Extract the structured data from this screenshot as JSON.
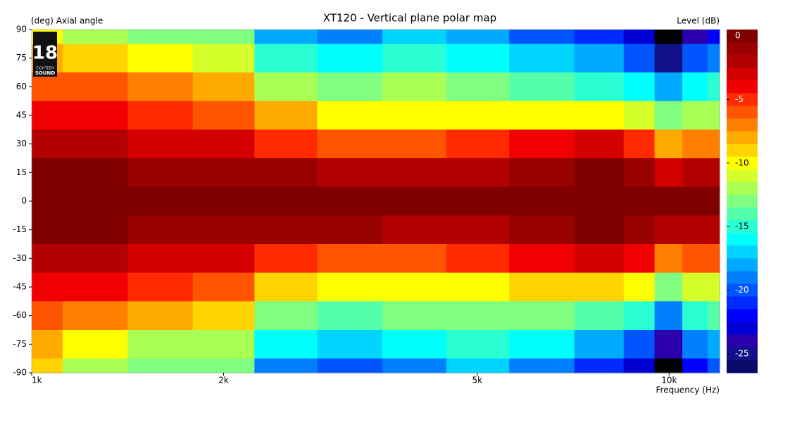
{
  "chart_data": {
    "type": "contour",
    "title": "XT120 - Vertical plane polar map",
    "ylabel": "(deg)  Axial angle",
    "xlabel": "Frequency  (Hz)",
    "zlabel": "Level  (dB)",
    "logo": {
      "number": "18",
      "line1": "EIGHTEEN",
      "line2": "SOUND"
    },
    "x": [
      1000,
      1250,
      1600,
      2000,
      2500,
      3150,
      4000,
      5000,
      6300,
      8000,
      9000,
      10000,
      11000,
      12000
    ],
    "y": [
      90,
      75,
      60,
      45,
      30,
      15,
      0,
      -15,
      -30,
      -45,
      -60,
      -75,
      -90
    ],
    "z": [
      [
        -10,
        -12,
        -13,
        -13,
        -18,
        -19,
        -17,
        -18,
        -20,
        -21,
        -23,
        -27,
        -24,
        -22
      ],
      [
        -8,
        -9,
        -10,
        -11,
        -15,
        -16,
        -15,
        -16,
        -17,
        -18,
        -20,
        -25,
        -20,
        -19
      ],
      [
        -6,
        -6,
        -7,
        -8,
        -12,
        -13,
        -12,
        -13,
        -14,
        -15,
        -16,
        -18,
        -16,
        -15
      ],
      [
        -4,
        -4,
        -5,
        -6,
        -8,
        -10,
        -10,
        -10,
        -10,
        -10,
        -11,
        -13,
        -12,
        -12
      ],
      [
        -2,
        -2,
        -3,
        -3,
        -5,
        -6,
        -6,
        -5,
        -4,
        -3,
        -5,
        -8,
        -7,
        -7
      ],
      [
        0,
        0,
        -1,
        -1,
        -1,
        -2,
        -2,
        -2,
        -1,
        0,
        -1,
        -3,
        -2,
        -2
      ],
      [
        0,
        0,
        0,
        0,
        0,
        0,
        0,
        0,
        0,
        0,
        0,
        0,
        0,
        0
      ],
      [
        0,
        0,
        -1,
        -1,
        -1,
        -1,
        -2,
        -2,
        -1,
        0,
        -1,
        -2,
        -2,
        -2
      ],
      [
        -2,
        -2,
        -3,
        -3,
        -5,
        -6,
        -6,
        -5,
        -4,
        -3,
        -4,
        -7,
        -6,
        -6
      ],
      [
        -4,
        -4,
        -5,
        -6,
        -9,
        -10,
        -10,
        -10,
        -9,
        -9,
        -10,
        -13,
        -11,
        -11
      ],
      [
        -6,
        -7,
        -8,
        -9,
        -13,
        -14,
        -13,
        -13,
        -13,
        -14,
        -15,
        -19,
        -15,
        -14
      ],
      [
        -8,
        -10,
        -12,
        -12,
        -16,
        -17,
        -16,
        -15,
        -16,
        -18,
        -20,
        -24,
        -19,
        -18
      ],
      [
        -9,
        -12,
        -13,
        -13,
        -19,
        -20,
        -19,
        -17,
        -19,
        -21,
        -23,
        -27,
        -22,
        -20
      ]
    ],
    "xscale": "log",
    "xlim": [
      1000,
      12000
    ],
    "xticks": [
      {
        "value": 1000,
        "label": "1k"
      },
      {
        "value": 2000,
        "label": "2k"
      },
      {
        "value": 5000,
        "label": "5k"
      },
      {
        "value": 10000,
        "label": "10k"
      }
    ],
    "ylim": [
      -90,
      90
    ],
    "yticks": [
      90,
      75,
      60,
      45,
      30,
      15,
      0,
      -15,
      -30,
      -45,
      -60,
      -75,
      -90
    ],
    "zlim": [
      -26.5,
      0.5
    ],
    "zticks": [
      0,
      -5,
      -10,
      -15,
      -20,
      -25
    ],
    "colorscale": [
      "#800000",
      "#990000",
      "#b30000",
      "#d40000",
      "#f00000",
      "#ff2a00",
      "#ff5500",
      "#ff8000",
      "#ffaa00",
      "#ffd400",
      "#ffff00",
      "#d4ff2a",
      "#aaff55",
      "#80ff80",
      "#55ffaa",
      "#2affd4",
      "#00ffff",
      "#00d4ff",
      "#00aaff",
      "#0080ff",
      "#0055ff",
      "#002aff",
      "#0000ff",
      "#0000d4",
      "#2a00aa",
      "#10108a",
      "#0a0a6a"
    ],
    "under_color": "#000000"
  }
}
